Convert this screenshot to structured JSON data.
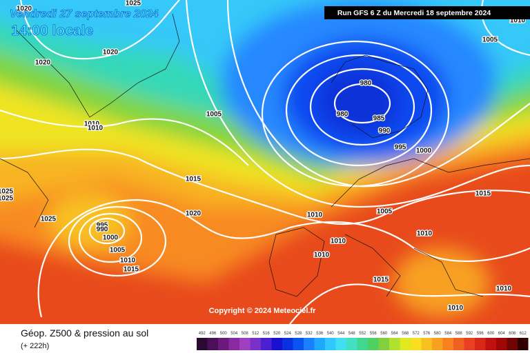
{
  "header": {
    "date": "Vendredi 27 septembre 2024",
    "time": "14:00 locale",
    "run": "Run GFS 6 Z du Mercredi 18 septembre 2024"
  },
  "copyright": "Copyright © 2024 Meteociel.fr",
  "legend": {
    "title": "Géop. Z500 & pression au sol",
    "lead": "(+ 222h)",
    "labels": [
      492,
      496,
      500,
      504,
      508,
      512,
      516,
      520,
      524,
      528,
      532,
      536,
      540,
      544,
      548,
      552,
      556,
      560,
      564,
      568,
      572,
      576,
      580,
      584,
      588,
      592,
      596,
      600,
      604,
      608,
      612
    ],
    "colors": [
      "#2a0a30",
      "#4b1158",
      "#6a1a7a",
      "#8a2aa0",
      "#a040c0",
      "#7a30c8",
      "#4a20d0",
      "#1a10d0",
      "#0a30e0",
      "#0a55f0",
      "#1a80ff",
      "#20a8ff",
      "#30c8ff",
      "#40e0f0",
      "#40e0c0",
      "#40d890",
      "#50d060",
      "#80d040",
      "#b0e030",
      "#e0e820",
      "#f8e020",
      "#f8c020",
      "#f8a020",
      "#f88020",
      "#f06020",
      "#e84020",
      "#d82818",
      "#c01010",
      "#a00808",
      "#700404",
      "#300000"
    ]
  },
  "isobar_labels": [
    "1025",
    "1020",
    "1020",
    "1020",
    "1005",
    "1010",
    "980",
    "980",
    "985",
    "990",
    "995",
    "1000",
    "1005",
    "1010",
    "1010",
    "1015",
    "1025",
    "1025",
    "1025",
    "1020",
    "995",
    "990",
    "1000",
    "1005",
    "1010",
    "1015",
    "1010",
    "1005",
    "1015",
    "1010",
    "1010",
    "1010",
    "1015",
    "1010",
    "1010"
  ]
}
